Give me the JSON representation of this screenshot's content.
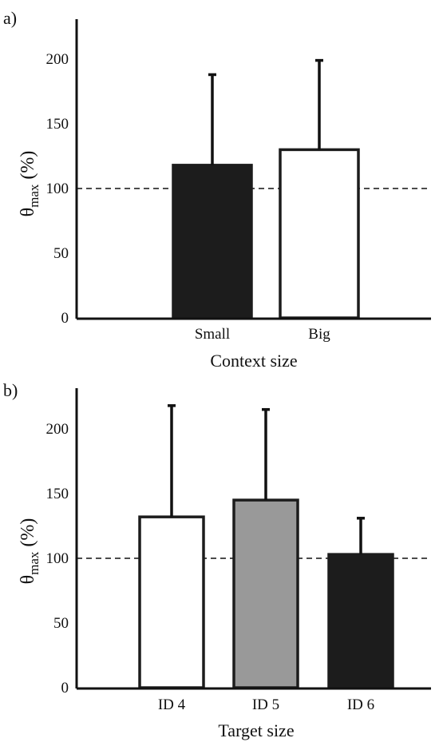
{
  "colors": {
    "axis": "#111111",
    "bar_black": "#1c1c1c",
    "bar_white": "#ffffff",
    "bar_gray": "#999999",
    "reference_line": "#111111"
  },
  "chart_data": [
    {
      "type": "bar",
      "panel_label": "a)",
      "categories": [
        "Small",
        "Big"
      ],
      "values": [
        118,
        130
      ],
      "errors": [
        70,
        69
      ],
      "bar_fills": [
        "#1c1c1c",
        "#ffffff"
      ],
      "xlabel": "Context size",
      "ylabel": "θ",
      "ylabel_subscript": "max",
      "ylabel_suffix": " (%)",
      "ylim": [
        0,
        225
      ],
      "yticks": [
        "0",
        "50",
        "100",
        "150",
        "200"
      ],
      "reference_line": 100,
      "reference_style": "dashed",
      "grid": false
    },
    {
      "type": "bar",
      "panel_label": "b)",
      "categories": [
        "ID 4",
        "ID 5",
        "ID 6"
      ],
      "values": [
        132,
        145,
        103
      ],
      "errors": [
        86,
        70,
        28
      ],
      "bar_fills": [
        "#ffffff",
        "#999999",
        "#1c1c1c"
      ],
      "xlabel": "Target size",
      "ylabel": "θ",
      "ylabel_subscript": "max",
      "ylabel_suffix": " (%)",
      "ylim": [
        0,
        225
      ],
      "yticks": [
        "0",
        "50",
        "100",
        "150",
        "200"
      ],
      "reference_line": 100,
      "reference_style": "dashed",
      "grid": false
    }
  ]
}
